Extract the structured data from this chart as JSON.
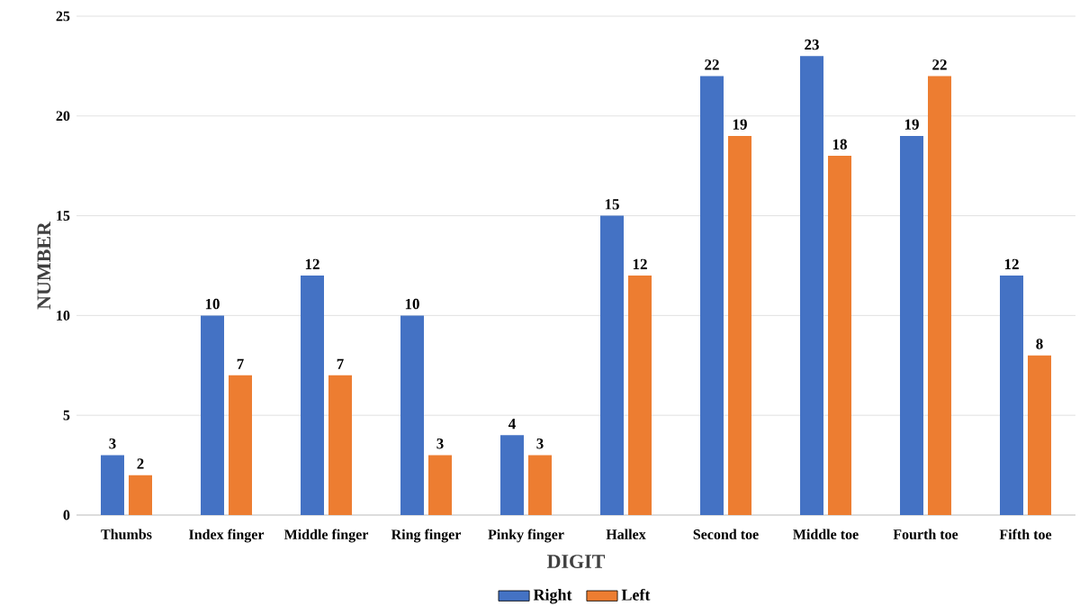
{
  "chart_data": {
    "type": "bar",
    "xlabel": "DIGIT",
    "ylabel": "NUMBER",
    "categories": [
      "Thumbs",
      "Index finger",
      "Middle finger",
      "Ring finger",
      "Pinky finger",
      "Hallex",
      "Second toe",
      "Middle toe",
      "Fourth toe",
      "Fifth toe"
    ],
    "series": [
      {
        "name": "Right",
        "color": "#4472c4",
        "values": [
          3,
          10,
          12,
          10,
          4,
          15,
          22,
          23,
          19,
          12
        ]
      },
      {
        "name": "Left",
        "color": "#ed7d31",
        "values": [
          2,
          7,
          7,
          3,
          3,
          12,
          19,
          18,
          22,
          8
        ]
      }
    ],
    "ylim": [
      0,
      25
    ],
    "yticks": [
      0,
      5,
      10,
      15,
      20,
      25
    ],
    "grid": "y",
    "legend": "bottom",
    "data_labels": true
  }
}
